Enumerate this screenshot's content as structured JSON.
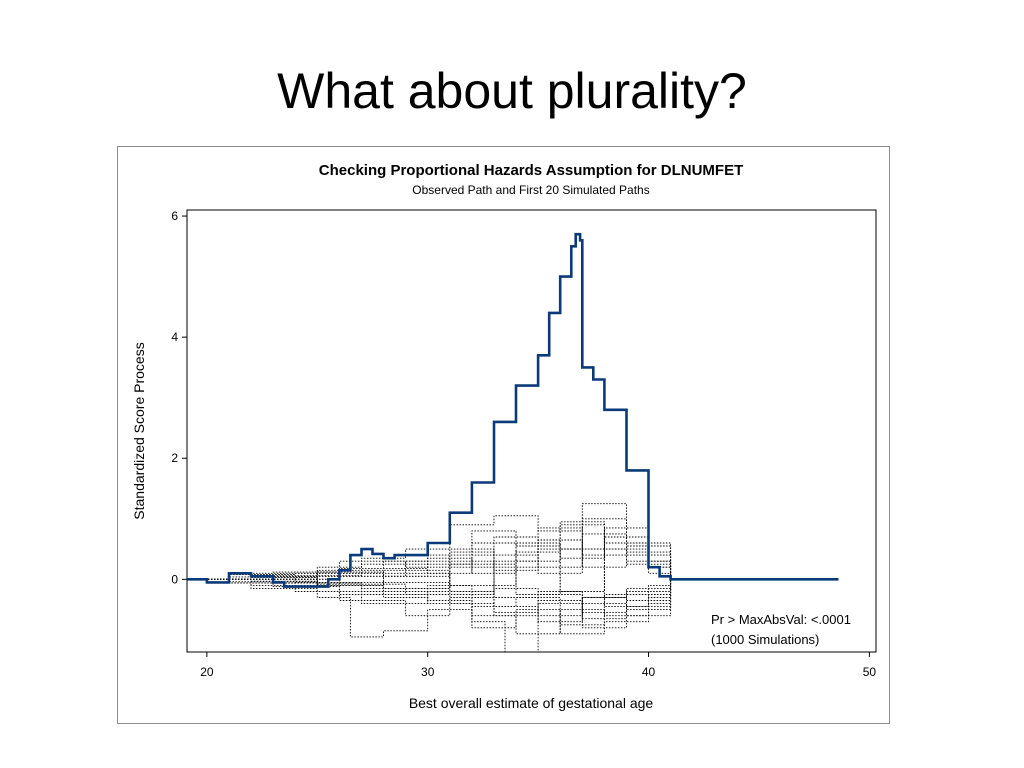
{
  "slide": {
    "title": "What about plurality?"
  },
  "colors": {
    "observed": "#0b3a7a",
    "simulated": "#000000",
    "frame": "#8c8c8c"
  },
  "chart_data": {
    "type": "line",
    "title": "Checking Proportional Hazards Assumption for DLNUMFET",
    "subtitle": "Observed Path and First 20 Simulated Paths",
    "xlabel": "Best overall estimate of gestational age",
    "ylabel": "Standardized Score Process",
    "xlim": [
      19.1,
      50.3
    ],
    "ylim": [
      -1.2,
      6.1
    ],
    "xticks": [
      20,
      30,
      40,
      50
    ],
    "yticks": [
      0,
      2,
      4,
      6
    ],
    "grid": false,
    "legend": "none",
    "annotation": {
      "line1": "Pr > MaxAbsVal: <.0001",
      "line2": "(1000 Simulations)"
    },
    "series": [
      {
        "style": "solid",
        "x": [
          19.1,
          20,
          21,
          22,
          23,
          23.5,
          24.5,
          25.5,
          26,
          26.5,
          27,
          27.5,
          28,
          28.5,
          29,
          30,
          31,
          32,
          33,
          34,
          35,
          35.5,
          36,
          36.5,
          36.7,
          36.9,
          37,
          37.5,
          38,
          39,
          40,
          40.5,
          41,
          48.6
        ],
        "y": [
          0,
          -0.05,
          0.1,
          0.05,
          -0.05,
          -0.12,
          -0.12,
          0.0,
          0.15,
          0.4,
          0.5,
          0.42,
          0.35,
          0.4,
          0.4,
          0.6,
          1.1,
          1.6,
          2.6,
          3.2,
          3.7,
          4.4,
          5.0,
          5.5,
          5.7,
          5.6,
          3.5,
          3.3,
          2.8,
          1.8,
          0.2,
          0.05,
          0.0,
          0.0
        ]
      },
      {
        "style": "dotted",
        "x": [
          19.1,
          22,
          25,
          27,
          29,
          31,
          33,
          35,
          37,
          39,
          41
        ],
        "y": [
          0,
          0.05,
          0.2,
          0.35,
          0.5,
          0.9,
          1.05,
          0.8,
          1.25,
          0.6,
          0.0
        ]
      },
      {
        "style": "dotted",
        "x": [
          19.1,
          22,
          25,
          26.5,
          28,
          30,
          32,
          33.5,
          35,
          37,
          39,
          41
        ],
        "y": [
          0,
          -0.15,
          -0.3,
          -0.95,
          -0.85,
          -0.5,
          -0.7,
          -1.2,
          -0.4,
          -0.3,
          -0.2,
          0.0
        ]
      },
      {
        "style": "dotted",
        "x": [
          19.1,
          22,
          25,
          28,
          30,
          32,
          34,
          36,
          38,
          40,
          41
        ],
        "y": [
          0,
          0.1,
          0.15,
          0.3,
          0.25,
          0.6,
          0.3,
          0.9,
          0.5,
          0.2,
          0.0
        ]
      },
      {
        "style": "dotted",
        "x": [
          19.1,
          22,
          25,
          28,
          30,
          32,
          34,
          36,
          38,
          40,
          41
        ],
        "y": [
          0,
          -0.1,
          -0.05,
          -0.3,
          -0.4,
          -0.6,
          -0.9,
          -0.5,
          -0.6,
          -0.25,
          0.0
        ]
      },
      {
        "style": "dotted",
        "x": [
          19.1,
          21,
          24,
          27,
          30,
          33,
          35,
          37,
          39,
          41
        ],
        "y": [
          0,
          0.08,
          0.1,
          0.05,
          0.4,
          0.7,
          0.2,
          1.0,
          0.45,
          0.0
        ]
      },
      {
        "style": "dotted",
        "x": [
          19.1,
          21,
          24,
          27,
          30,
          33,
          35,
          37,
          39,
          41
        ],
        "y": [
          0,
          -0.06,
          -0.2,
          -0.4,
          -0.2,
          -0.45,
          -0.7,
          -0.3,
          -0.5,
          0.0
        ]
      },
      {
        "style": "dotted",
        "x": [
          19.1,
          23,
          26,
          29,
          31,
          33,
          35,
          37,
          39,
          41
        ],
        "y": [
          0,
          0.12,
          0.3,
          0.2,
          0.5,
          0.2,
          0.65,
          0.4,
          0.3,
          0.0
        ]
      },
      {
        "style": "dotted",
        "x": [
          19.1,
          23,
          26,
          29,
          31,
          33,
          35,
          37,
          39,
          41
        ],
        "y": [
          0,
          -0.12,
          -0.35,
          -0.6,
          -0.3,
          -0.55,
          -0.25,
          -0.8,
          -0.35,
          0.0
        ]
      },
      {
        "style": "dotted",
        "x": [
          19.1,
          22,
          25,
          28,
          31,
          34,
          36,
          38,
          40,
          41
        ],
        "y": [
          0,
          0.03,
          -0.1,
          0.15,
          -0.1,
          0.45,
          -0.2,
          0.7,
          0.1,
          0.0
        ]
      },
      {
        "style": "dotted",
        "x": [
          19.1,
          22,
          25,
          28,
          31,
          34,
          36,
          38,
          40,
          41
        ],
        "y": [
          0,
          -0.03,
          0.12,
          -0.15,
          0.25,
          -0.25,
          0.5,
          -0.45,
          -0.1,
          0.0
        ]
      },
      {
        "style": "dotted",
        "x": [
          19.1,
          24,
          27,
          30,
          32,
          34,
          36,
          38,
          40,
          41
        ],
        "y": [
          0,
          0.05,
          0.25,
          0.1,
          0.8,
          0.55,
          0.95,
          0.6,
          0.3,
          0.0
        ]
      },
      {
        "style": "dotted",
        "x": [
          19.1,
          24,
          27,
          30,
          32,
          34,
          36,
          38,
          40,
          41
        ],
        "y": [
          0,
          -0.05,
          -0.2,
          -0.35,
          -0.8,
          -0.5,
          -0.9,
          -0.7,
          -0.3,
          0.0
        ]
      },
      {
        "style": "dotted",
        "x": [
          19.1,
          21,
          25,
          29,
          33,
          35,
          37,
          39,
          41
        ],
        "y": [
          0,
          0.04,
          0.05,
          0.3,
          0.4,
          0.1,
          0.75,
          0.25,
          0.0
        ]
      },
      {
        "style": "dotted",
        "x": [
          19.1,
          21,
          25,
          29,
          33,
          35,
          37,
          39,
          41
        ],
        "y": [
          0,
          -0.04,
          -0.08,
          -0.25,
          -0.15,
          -0.6,
          -0.4,
          -0.6,
          0.0
        ]
      },
      {
        "style": "dotted",
        "x": [
          19.1,
          23,
          27,
          31,
          33,
          35,
          37,
          39,
          41
        ],
        "y": [
          0,
          0.06,
          0.1,
          -0.2,
          0.3,
          0.5,
          0.2,
          0.55,
          0.0
        ]
      },
      {
        "style": "dotted",
        "x": [
          19.1,
          23,
          27,
          31,
          33,
          35,
          37,
          39,
          41
        ],
        "y": [
          0,
          -0.06,
          -0.15,
          0.2,
          -0.3,
          -0.2,
          -0.55,
          -0.15,
          0.0
        ]
      },
      {
        "style": "dotted",
        "x": [
          19.1,
          22,
          26,
          30,
          32,
          34,
          36,
          38,
          40,
          41
        ],
        "y": [
          0,
          0.0,
          0.18,
          0.35,
          0.1,
          0.6,
          0.35,
          0.85,
          0.2,
          0.0
        ]
      },
      {
        "style": "dotted",
        "x": [
          19.1,
          22,
          26,
          30,
          32,
          34,
          36,
          38,
          40,
          41
        ],
        "y": [
          0,
          0.0,
          -0.25,
          -0.1,
          -0.45,
          -0.3,
          -0.75,
          -0.25,
          -0.4,
          0.0
        ]
      },
      {
        "style": "dotted",
        "x": [
          19.1,
          25,
          28,
          31,
          33,
          35,
          37,
          39,
          41
        ],
        "y": [
          0,
          0.1,
          0.05,
          0.45,
          0.15,
          0.85,
          0.5,
          0.4,
          0.0
        ]
      },
      {
        "style": "dotted",
        "x": [
          19.1,
          25,
          28,
          31,
          33,
          35,
          37,
          39,
          41
        ],
        "y": [
          0,
          -0.1,
          -0.05,
          -0.4,
          -0.6,
          -0.35,
          -0.65,
          -0.45,
          0.0
        ]
      }
    ]
  }
}
